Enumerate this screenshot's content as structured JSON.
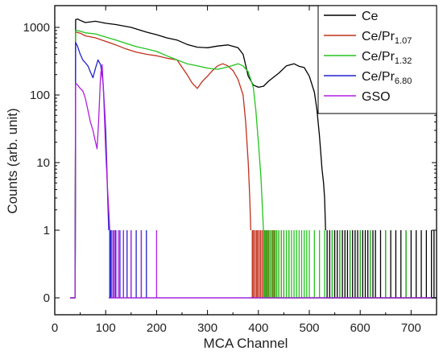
{
  "chart_data": {
    "type": "line",
    "title": "",
    "xlabel": "MCA Channel",
    "ylabel": "Counts (arb. unit)",
    "xlim": [
      0,
      750
    ],
    "x_ticks": [
      0,
      100,
      200,
      300,
      400,
      500,
      600,
      700
    ],
    "y_scale": "log-with-zero",
    "y_tick_values": [
      0,
      1,
      10,
      100,
      1000
    ],
    "y_tick_labels": [
      "0",
      "1",
      "10",
      "100",
      "1000"
    ],
    "grid": false,
    "legend_position": "top-right",
    "series": [
      {
        "name": "Ce",
        "legend_main": "Ce",
        "legend_sub": "",
        "color": "#000000",
        "points": [
          [
            30,
            0
          ],
          [
            40,
            0
          ],
          [
            41,
            1300
          ],
          [
            45,
            1330
          ],
          [
            50,
            1270
          ],
          [
            60,
            1180
          ],
          [
            80,
            1230
          ],
          [
            100,
            1150
          ],
          [
            120,
            1100
          ],
          [
            150,
            1000
          ],
          [
            180,
            850
          ],
          [
            200,
            780
          ],
          [
            220,
            700
          ],
          [
            240,
            650
          ],
          [
            260,
            560
          ],
          [
            280,
            510
          ],
          [
            300,
            500
          ],
          [
            320,
            530
          ],
          [
            340,
            550
          ],
          [
            360,
            500
          ],
          [
            370,
            400
          ],
          [
            380,
            190
          ],
          [
            390,
            140
          ],
          [
            400,
            130
          ],
          [
            410,
            135
          ],
          [
            420,
            160
          ],
          [
            440,
            210
          ],
          [
            455,
            270
          ],
          [
            470,
            290
          ],
          [
            480,
            265
          ],
          [
            490,
            255
          ],
          [
            500,
            190
          ],
          [
            510,
            110
          ],
          [
            515,
            60
          ],
          [
            520,
            25
          ],
          [
            525,
            8
          ],
          [
            528,
            5
          ],
          [
            530,
            3
          ],
          [
            532,
            1
          ]
        ],
        "spikes_x": [
          535,
          540,
          545,
          550,
          555,
          560,
          565,
          570,
          575,
          580,
          585,
          590,
          595,
          600,
          605,
          610,
          615,
          620,
          625,
          630,
          640,
          650,
          660,
          670,
          680,
          690,
          700,
          710,
          720,
          730,
          740,
          745
        ]
      },
      {
        "name": "Ce/Pr1.07",
        "legend_main": "Ce/Pr",
        "legend_sub": "1.07",
        "color": "#c0301c",
        "points": [
          [
            30,
            0
          ],
          [
            40,
            0
          ],
          [
            41,
            850
          ],
          [
            50,
            820
          ],
          [
            60,
            750
          ],
          [
            80,
            700
          ],
          [
            100,
            620
          ],
          [
            120,
            550
          ],
          [
            140,
            480
          ],
          [
            160,
            430
          ],
          [
            180,
            400
          ],
          [
            200,
            380
          ],
          [
            220,
            350
          ],
          [
            240,
            330
          ],
          [
            260,
            200
          ],
          [
            270,
            150
          ],
          [
            280,
            125
          ],
          [
            290,
            160
          ],
          [
            300,
            190
          ],
          [
            310,
            230
          ],
          [
            320,
            270
          ],
          [
            330,
            290
          ],
          [
            340,
            270
          ],
          [
            350,
            230
          ],
          [
            360,
            170
          ],
          [
            370,
            100
          ],
          [
            375,
            40
          ],
          [
            380,
            10
          ],
          [
            383,
            3
          ],
          [
            385,
            1
          ]
        ],
        "spikes_x": [
          388,
          390,
          393,
          396,
          398,
          401,
          404,
          407,
          410,
          413,
          416,
          420,
          424,
          428,
          432,
          436,
          440,
          445,
          450,
          460
        ]
      },
      {
        "name": "Ce/Pr1.32",
        "legend_main": "Ce/Pr",
        "legend_sub": "1.32",
        "color": "#22c41c",
        "points": [
          [
            30,
            0
          ],
          [
            40,
            0
          ],
          [
            41,
            900
          ],
          [
            50,
            880
          ],
          [
            60,
            830
          ],
          [
            80,
            800
          ],
          [
            100,
            720
          ],
          [
            120,
            650
          ],
          [
            140,
            580
          ],
          [
            160,
            520
          ],
          [
            180,
            480
          ],
          [
            200,
            440
          ],
          [
            220,
            380
          ],
          [
            240,
            330
          ],
          [
            260,
            290
          ],
          [
            280,
            270
          ],
          [
            300,
            250
          ],
          [
            320,
            240
          ],
          [
            340,
            260
          ],
          [
            360,
            290
          ],
          [
            370,
            270
          ],
          [
            380,
            220
          ],
          [
            390,
            130
          ],
          [
            395,
            60
          ],
          [
            400,
            20
          ],
          [
            405,
            6
          ],
          [
            408,
            2
          ],
          [
            410,
            1
          ]
        ],
        "spikes_x": [
          412,
          415,
          418,
          421,
          424,
          427,
          430,
          433,
          436,
          440,
          445,
          450,
          455,
          460,
          465,
          470,
          475,
          480,
          485,
          490,
          495,
          500,
          510,
          520,
          530,
          545,
          560,
          580,
          600,
          620,
          650,
          690
        ]
      },
      {
        "name": "Ce/Pr6.80",
        "legend_main": "Ce/Pr",
        "legend_sub": "6.80",
        "color": "#2222cc",
        "points": [
          [
            30,
            0
          ],
          [
            40,
            0
          ],
          [
            41,
            600
          ],
          [
            45,
            520
          ],
          [
            50,
            400
          ],
          [
            55,
            330
          ],
          [
            60,
            300
          ],
          [
            65,
            270
          ],
          [
            70,
            220
          ],
          [
            75,
            180
          ],
          [
            80,
            250
          ],
          [
            85,
            330
          ],
          [
            90,
            280
          ],
          [
            95,
            150
          ],
          [
            98,
            60
          ],
          [
            100,
            30
          ],
          [
            102,
            10
          ],
          [
            104,
            3
          ],
          [
            106,
            1
          ]
        ],
        "spikes_x": [
          108,
          110,
          115,
          120,
          128,
          135,
          142,
          150,
          160,
          170,
          180
        ]
      },
      {
        "name": "GSO",
        "legend_main": "GSO",
        "legend_sub": "",
        "color": "#b01fe0",
        "points": [
          [
            30,
            0
          ],
          [
            40,
            0
          ],
          [
            41,
            150
          ],
          [
            45,
            140
          ],
          [
            50,
            125
          ],
          [
            55,
            115
          ],
          [
            60,
            90
          ],
          [
            65,
            60
          ],
          [
            70,
            40
          ],
          [
            75,
            30
          ],
          [
            80,
            20
          ],
          [
            83,
            16
          ],
          [
            86,
            40
          ],
          [
            90,
            200
          ],
          [
            93,
            280
          ],
          [
            96,
            100
          ],
          [
            98,
            40
          ],
          [
            100,
            15
          ],
          [
            103,
            5
          ],
          [
            106,
            2
          ],
          [
            108,
            1
          ]
        ],
        "spikes_x": [
          112,
          118,
          125,
          135,
          150,
          170,
          200
        ]
      }
    ]
  }
}
